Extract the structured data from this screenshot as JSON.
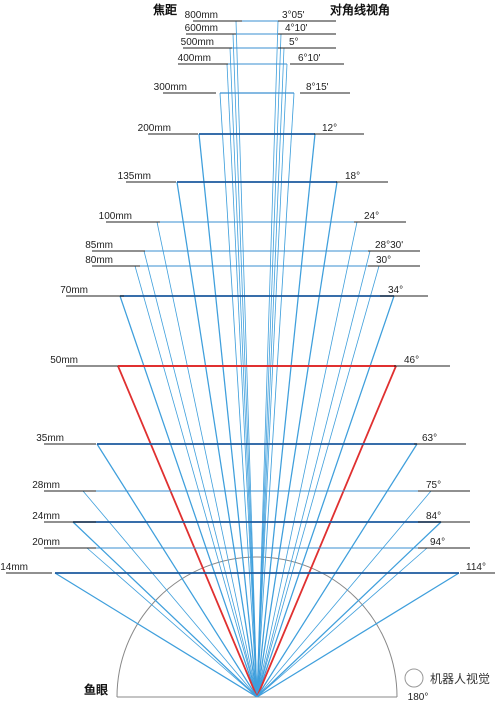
{
  "titles": {
    "focal_length": "焦距",
    "diagonal_angle": "对角线视角",
    "fisheye": "鱼眼",
    "fisheye_angle": "180°"
  },
  "watermark": "机器人视觉",
  "colors": {
    "fan_line": "#3f9fdc",
    "frame_dark": "#1c5a9e",
    "frame_mid": "#3a8fd0",
    "highlight": "#e03030",
    "arc": "#888888",
    "text": "#222222"
  },
  "lenses": [
    {
      "focal": "800mm",
      "angle": "3°05'"
    },
    {
      "focal": "600mm",
      "angle": "4°10'"
    },
    {
      "focal": "500mm",
      "angle": "5°"
    },
    {
      "focal": "400mm",
      "angle": "6°10'"
    },
    {
      "focal": "300mm",
      "angle": "8°15'"
    },
    {
      "focal": "200mm",
      "angle": "12°"
    },
    {
      "focal": "135mm",
      "angle": "18°"
    },
    {
      "focal": "100mm",
      "angle": "24°"
    },
    {
      "focal": "85mm",
      "angle": "28°30'"
    },
    {
      "focal": "80mm",
      "angle": "30°"
    },
    {
      "focal": "70mm",
      "angle": "34°"
    },
    {
      "focal": "50mm",
      "angle": "46°",
      "highlight": true
    },
    {
      "focal": "35mm",
      "angle": "63°"
    },
    {
      "focal": "28mm",
      "angle": "75°"
    },
    {
      "focal": "24mm",
      "angle": "84°"
    },
    {
      "focal": "20mm",
      "angle": "94°"
    },
    {
      "focal": "14mm",
      "angle": "114°"
    }
  ]
}
